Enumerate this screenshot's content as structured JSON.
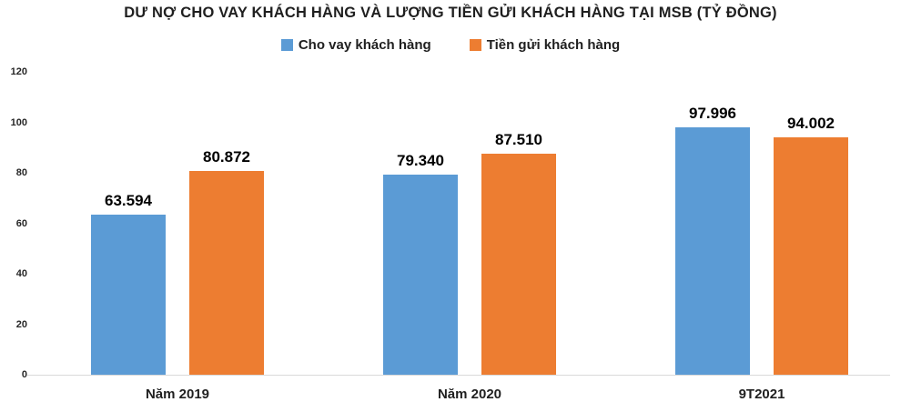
{
  "chart_data": {
    "type": "bar",
    "title": "DƯ NỢ CHO VAY KHÁCH HÀNG VÀ LƯỢNG TIỀN GỬI KHÁCH HÀNG TẠI MSB (TỶ ĐỒNG)",
    "categories": [
      "Năm 2019",
      "Năm 2020",
      "9T2021"
    ],
    "series": [
      {
        "name": "Cho vay khách hàng",
        "color": "#5B9BD5",
        "values": [
          63.594,
          79.34,
          97.996
        ],
        "labels": [
          "63.594",
          "79.340",
          "97.996"
        ]
      },
      {
        "name": "Tiền gửi khách hàng",
        "color": "#ED7D31",
        "values": [
          80.872,
          87.51,
          94.002
        ],
        "labels": [
          "80.872",
          "87.510",
          "94.002"
        ]
      }
    ],
    "y_axis": {
      "min": 0,
      "max": 120,
      "ticks": [
        0,
        20,
        40,
        60,
        80,
        100,
        120
      ],
      "tick_labels": [
        "0",
        "20",
        "40",
        "60",
        "80",
        "100",
        "120"
      ]
    },
    "legend_position": "top",
    "grid": false,
    "background_color": "#ffffff",
    "axis_line_color": "#d9d9d9",
    "text_color": "#1f1f1f"
  }
}
